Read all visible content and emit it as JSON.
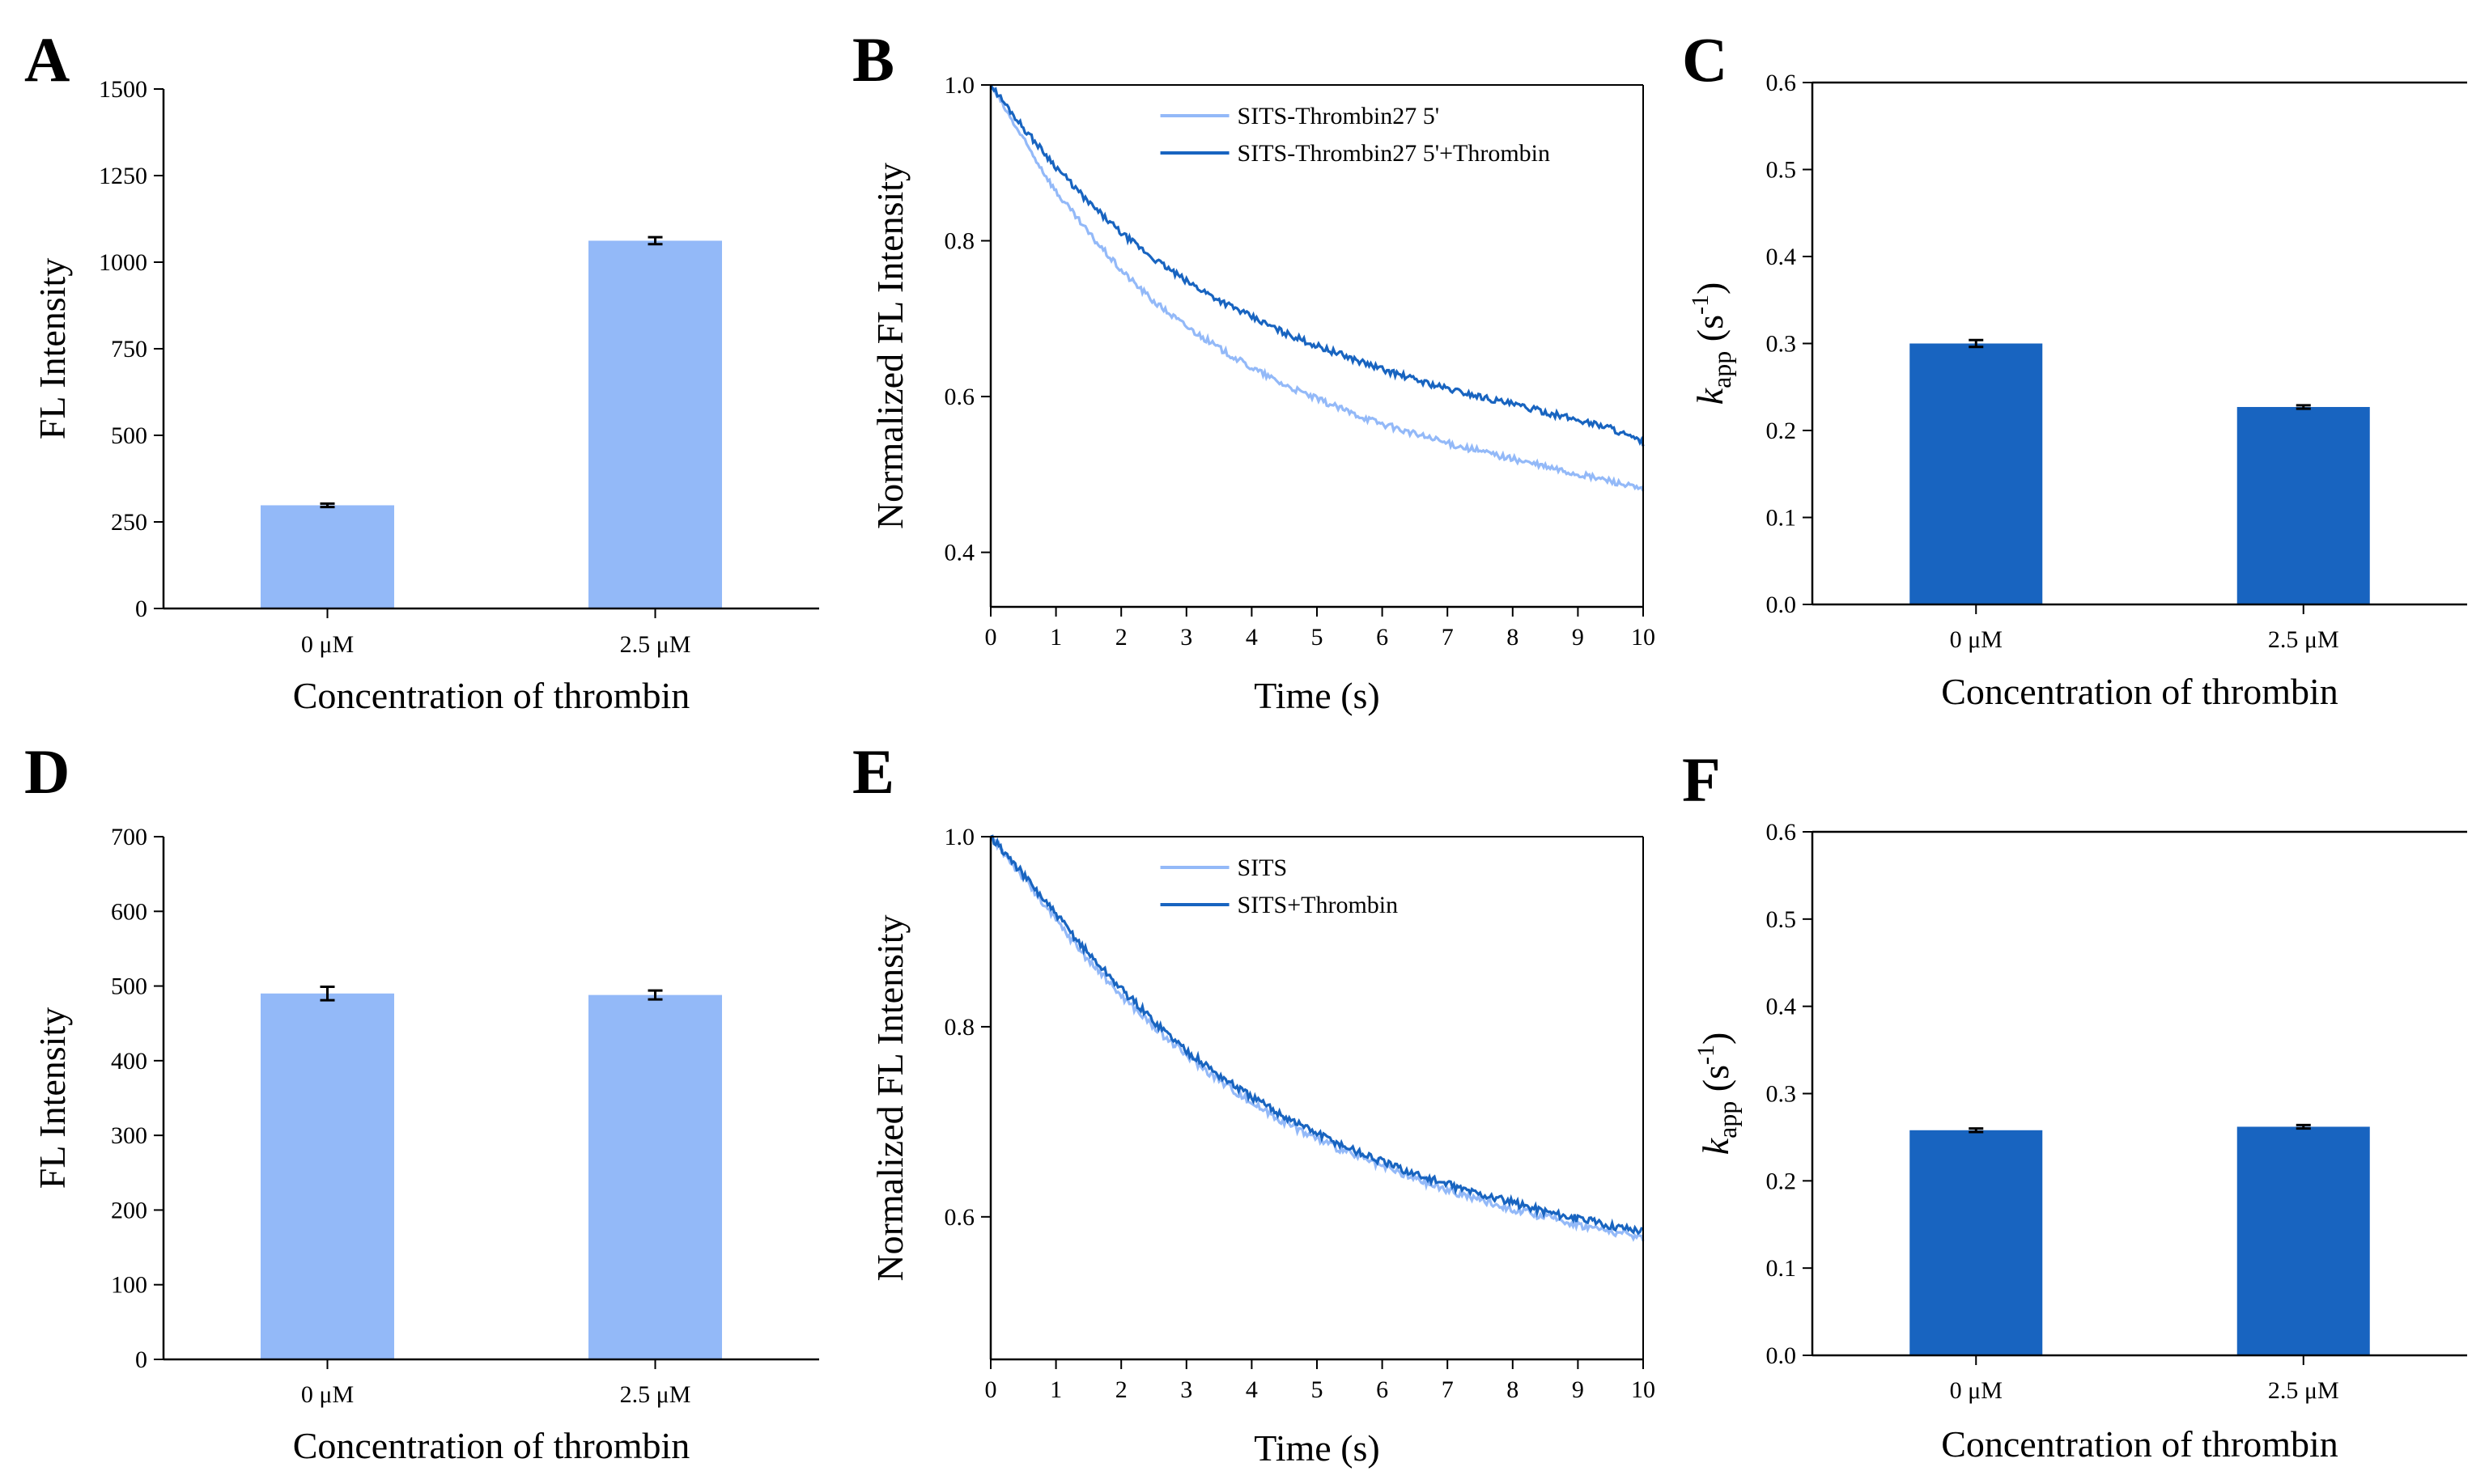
{
  "colors": {
    "light_blue": "#93b9f8",
    "dark_blue": "#1864c0",
    "axis": "#000000"
  },
  "chart_data": [
    {
      "id": "A",
      "panel_label": "A",
      "type": "bar",
      "categories": [
        "0 μM",
        "2.5 μM"
      ],
      "values": [
        298,
        1062
      ],
      "errors": [
        5,
        10
      ],
      "color": "#93b9f8",
      "xlabel": "Concentration of thrombin",
      "ylabel": "FL Intensity",
      "ylim": [
        0,
        1500
      ],
      "yticks": [
        0,
        250,
        500,
        750,
        1000,
        1250,
        1500
      ],
      "frame": "L"
    },
    {
      "id": "B",
      "panel_label": "B",
      "type": "line",
      "xlabel": "Time (s)",
      "ylabel": "Normalized FL Intensity",
      "xlim": [
        0,
        10
      ],
      "ylim": [
        0.33,
        1.0
      ],
      "xticks": [
        0,
        1,
        2,
        3,
        4,
        5,
        6,
        7,
        8,
        9,
        10
      ],
      "yticks": [
        0.4,
        0.6,
        0.8,
        1.0
      ],
      "ytick_labels": [
        "0.4",
        "0.6",
        "0.8",
        "1.0"
      ],
      "legend_position": "top-right",
      "series": [
        {
          "name": "SITS-Thrombin27 5'",
          "color": "#93b9f8",
          "x": [
            0,
            0.5,
            1,
            1.5,
            2,
            2.5,
            3,
            3.5,
            4,
            4.5,
            5,
            5.5,
            6,
            6.5,
            7,
            7.5,
            8,
            8.5,
            9,
            9.5,
            10
          ],
          "y": [
            1.0,
            0.93,
            0.863,
            0.81,
            0.762,
            0.722,
            0.69,
            0.662,
            0.637,
            0.615,
            0.597,
            0.58,
            0.565,
            0.552,
            0.54,
            0.53,
            0.52,
            0.51,
            0.5,
            0.492,
            0.48
          ]
        },
        {
          "name": "SITS-Thrombin27 5'+Thrombin",
          "color": "#1864c0",
          "x": [
            0,
            0.5,
            1,
            1.5,
            2,
            2.5,
            3,
            3.5,
            4,
            4.5,
            5,
            5.5,
            6,
            6.5,
            7,
            7.5,
            8,
            8.5,
            9,
            9.5,
            10
          ],
          "y": [
            1.0,
            0.945,
            0.895,
            0.849,
            0.81,
            0.777,
            0.748,
            0.724,
            0.702,
            0.682,
            0.665,
            0.65,
            0.635,
            0.622,
            0.61,
            0.6,
            0.59,
            0.58,
            0.57,
            0.56,
            0.54
          ]
        }
      ]
    },
    {
      "id": "C",
      "panel_label": "C",
      "type": "bar",
      "categories": [
        "0 μM",
        "2.5 μM"
      ],
      "values": [
        0.3,
        0.227
      ],
      "errors": [
        0.004,
        0.002
      ],
      "color": "#1864c0",
      "xlabel": "Concentration of thrombin",
      "ylabel_main": "k",
      "ylabel_sub": "app",
      "ylabel_unit": " (s",
      "ylabel_sup": "-1",
      "ylabel_close": ")",
      "ylim": [
        0,
        0.6
      ],
      "yticks": [
        0.0,
        0.1,
        0.2,
        0.3,
        0.4,
        0.5,
        0.6
      ],
      "ytick_labels": [
        "0.0",
        "0.1",
        "0.2",
        "0.3",
        "0.4",
        "0.5",
        "0.6"
      ],
      "frame": "L-top"
    },
    {
      "id": "D",
      "panel_label": "D",
      "type": "bar",
      "categories": [
        "0 μM",
        "2.5 μM"
      ],
      "values": [
        490,
        488
      ],
      "errors": [
        9,
        6
      ],
      "color": "#93b9f8",
      "xlabel": "Concentration of thrombin",
      "ylabel": "FL Intensity",
      "ylim": [
        0,
        700
      ],
      "yticks": [
        0,
        100,
        200,
        300,
        400,
        500,
        600,
        700
      ],
      "frame": "L"
    },
    {
      "id": "E",
      "panel_label": "E",
      "type": "line",
      "xlabel": "Time (s)",
      "ylabel": "Normalized FL Intensity",
      "xlim": [
        0,
        10
      ],
      "ylim": [
        0.45,
        1.0
      ],
      "xticks": [
        0,
        1,
        2,
        3,
        4,
        5,
        6,
        7,
        8,
        9,
        10
      ],
      "yticks": [
        0.6,
        0.8,
        1.0
      ],
      "ytick_labels": [
        "0.6",
        "0.8",
        "1.0"
      ],
      "legend_position": "top-right",
      "series": [
        {
          "name": "SITS",
          "color": "#93b9f8",
          "x": [
            0,
            0.5,
            1,
            1.5,
            2,
            2.5,
            3,
            3.5,
            4,
            4.5,
            5,
            5.5,
            6,
            6.5,
            7,
            7.5,
            8,
            8.5,
            9,
            9.5,
            10
          ],
          "y": [
            1.0,
            0.957,
            0.912,
            0.87,
            0.833,
            0.8,
            0.77,
            0.744,
            0.72,
            0.7,
            0.682,
            0.667,
            0.653,
            0.64,
            0.628,
            0.618,
            0.608,
            0.6,
            0.592,
            0.585,
            0.578
          ]
        },
        {
          "name": "SITS+Thrombin",
          "color": "#1864c0",
          "x": [
            0,
            0.5,
            1,
            1.5,
            2,
            2.5,
            3,
            3.5,
            4,
            4.5,
            5,
            5.5,
            6,
            6.5,
            7,
            7.5,
            8,
            8.5,
            9,
            9.5,
            10
          ],
          "y": [
            1.0,
            0.96,
            0.918,
            0.877,
            0.84,
            0.806,
            0.775,
            0.749,
            0.726,
            0.706,
            0.688,
            0.672,
            0.658,
            0.645,
            0.634,
            0.624,
            0.615,
            0.606,
            0.598,
            0.591,
            0.585
          ]
        }
      ]
    },
    {
      "id": "F",
      "panel_label": "F",
      "type": "bar",
      "categories": [
        "0 μM",
        "2.5 μM"
      ],
      "values": [
        0.258,
        0.262
      ],
      "errors": [
        0.002,
        0.002
      ],
      "color": "#1864c0",
      "xlabel": "Concentration of thrombin",
      "ylabel_main": "k",
      "ylabel_sub": "app",
      "ylabel_unit": " (s",
      "ylabel_sup": "-1",
      "ylabel_close": ")",
      "ylim": [
        0,
        0.6
      ],
      "yticks": [
        0.0,
        0.1,
        0.2,
        0.3,
        0.4,
        0.5,
        0.6
      ],
      "ytick_labels": [
        "0.0",
        "0.1",
        "0.2",
        "0.3",
        "0.4",
        "0.5",
        "0.6"
      ],
      "frame": "L-top"
    }
  ]
}
